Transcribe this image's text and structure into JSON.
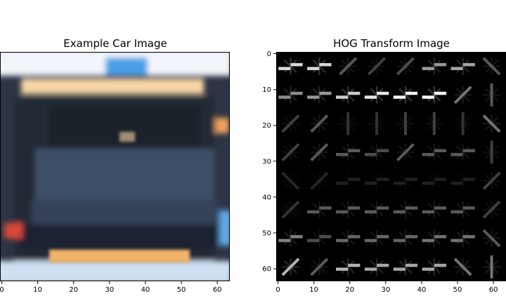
{
  "chart_data": [
    {
      "type": "image",
      "title": "Example Car Image",
      "extent": [
        -0.5,
        63.5
      ],
      "x_ticks": [
        0,
        10,
        20,
        30,
        40,
        50,
        60
      ],
      "y_ticks": [],
      "colors": {
        "background": "#2d3444",
        "top_glare": "#f2f6fa",
        "top_warm": "#f7d6a6",
        "top_blue": "#4aa0e6",
        "frame": "#242a36",
        "rear_window": "#1c222c",
        "body_panel": "#3e5068",
        "body_panel_dark": "#34435a",
        "bumper_dark": "#1e2430",
        "taillight_bar": "#f2b36a",
        "bottom_glare": "#cfe0f2",
        "left_light": "#d84a3a",
        "right_light": "#5fa9e8",
        "side_orange": "#f0a25c"
      }
    },
    {
      "type": "heatmap",
      "title": "HOG Transform Image",
      "extent": [
        -0.5,
        63.5
      ],
      "x_ticks": [
        0,
        10,
        20,
        30,
        40,
        50,
        60
      ],
      "y_ticks": [
        0,
        10,
        20,
        30,
        40,
        50,
        60
      ],
      "cell_size": 8,
      "colormap": "gray",
      "cells": [
        [
          [
            0,
            0.85
          ],
          [
            0,
            0.85
          ],
          [
            2,
            0.35
          ],
          [
            2,
            0.25
          ],
          [
            2,
            0.3
          ],
          [
            0,
            0.6
          ],
          [
            0,
            0.65
          ],
          [
            3,
            0.35
          ]
        ],
        [
          [
            0,
            0.55
          ],
          [
            0,
            0.6
          ],
          [
            0,
            0.8
          ],
          [
            0,
            0.9
          ],
          [
            0,
            0.95
          ],
          [
            0,
            1.0
          ],
          [
            2,
            0.45
          ],
          [
            1,
            0.35
          ]
        ],
        [
          [
            2,
            0.25
          ],
          [
            2,
            0.35
          ],
          [
            1,
            0.2
          ],
          [
            1,
            0.2
          ],
          [
            1,
            0.25
          ],
          [
            1,
            0.25
          ],
          [
            1,
            0.2
          ],
          [
            3,
            0.45
          ]
        ],
        [
          [
            2,
            0.25
          ],
          [
            2,
            0.35
          ],
          [
            0,
            0.35
          ],
          [
            0,
            0.3
          ],
          [
            2,
            0.35
          ],
          [
            0,
            0.35
          ],
          [
            0,
            0.35
          ],
          [
            1,
            0.25
          ]
        ],
        [
          [
            3,
            0.15
          ],
          [
            2,
            0.15
          ],
          [
            0,
            0.12
          ],
          [
            0,
            0.12
          ],
          [
            0,
            0.12
          ],
          [
            0,
            0.12
          ],
          [
            0,
            0.12
          ],
          [
            2,
            0.25
          ]
        ],
        [
          [
            2,
            0.2
          ],
          [
            0,
            0.35
          ],
          [
            0,
            0.35
          ],
          [
            0,
            0.35
          ],
          [
            0,
            0.35
          ],
          [
            0,
            0.35
          ],
          [
            0,
            0.35
          ],
          [
            2,
            0.25
          ]
        ],
        [
          [
            0,
            0.5
          ],
          [
            0,
            0.3
          ],
          [
            0,
            0.4
          ],
          [
            0,
            0.4
          ],
          [
            0,
            0.4
          ],
          [
            0,
            0.45
          ],
          [
            0,
            0.45
          ],
          [
            3,
            0.35
          ]
        ],
        [
          [
            2,
            0.7
          ],
          [
            2,
            0.35
          ],
          [
            0,
            0.7
          ],
          [
            0,
            0.65
          ],
          [
            0,
            0.65
          ],
          [
            0,
            0.65
          ],
          [
            3,
            0.45
          ],
          [
            1,
            0.45
          ]
        ]
      ]
    }
  ]
}
